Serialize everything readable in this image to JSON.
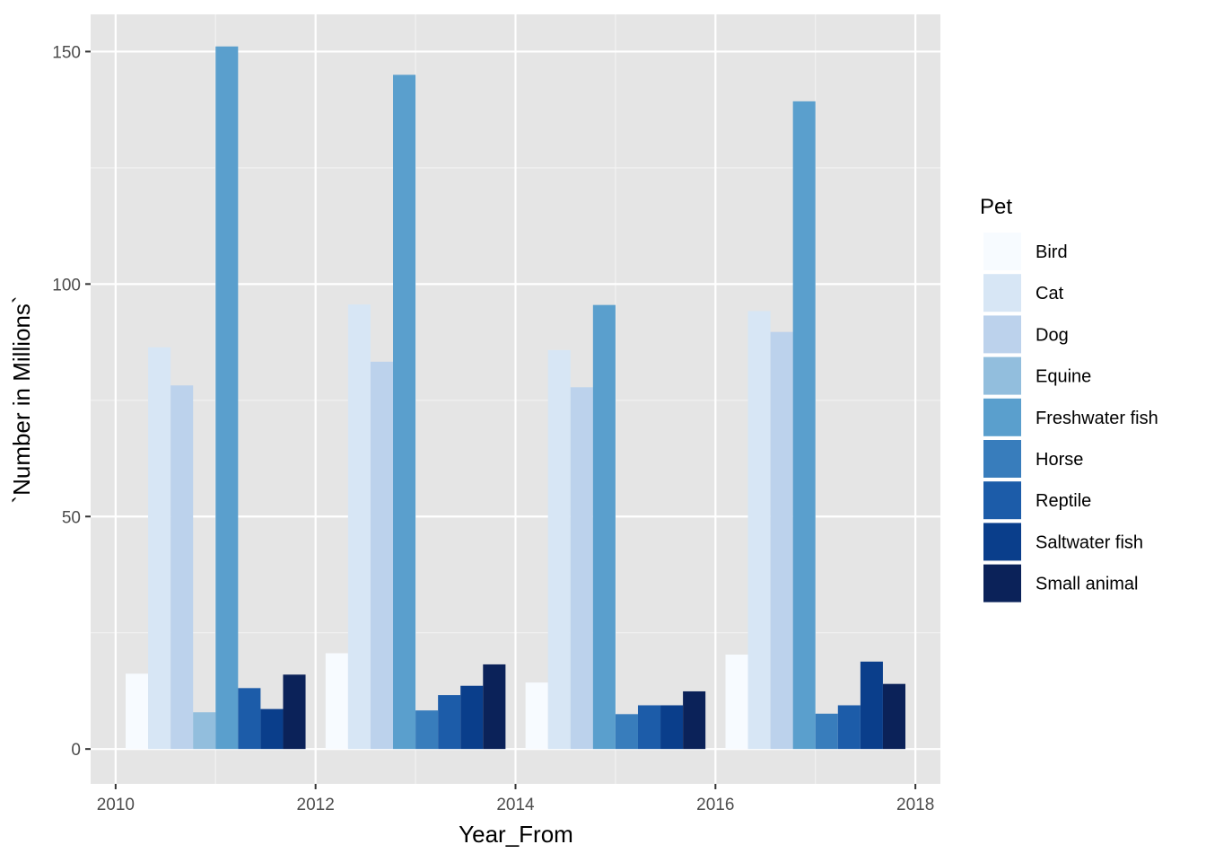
{
  "chart_data": {
    "type": "bar",
    "xlabel": "Year_From",
    "ylabel": "`Number in Millions`",
    "xlim": [
      2009.75,
      2018.25
    ],
    "ylim": [
      -7.5,
      158
    ],
    "x_ticks": [
      2010,
      2012,
      2014,
      2016,
      2018
    ],
    "y_ticks": [
      0,
      50,
      100,
      150
    ],
    "grid": true,
    "legend_title": "Pet",
    "legend_position": "right",
    "bar_group_width": 1.8,
    "x": [
      2011,
      2013,
      2015,
      2017
    ],
    "series": [
      {
        "name": "Bird",
        "color": "#f7fbff",
        "values": [
          16.2,
          20.6,
          14.3,
          20.3
        ]
      },
      {
        "name": "Cat",
        "color": "#d7e6f5",
        "values": [
          86.4,
          95.6,
          85.8,
          94.2
        ]
      },
      {
        "name": "Dog",
        "color": "#bcd2ec",
        "values": [
          78.2,
          83.3,
          77.8,
          89.7
        ]
      },
      {
        "name": "Equine",
        "color": "#92bedd",
        "values": [
          7.9,
          null,
          null,
          null
        ]
      },
      {
        "name": "Freshwater fish",
        "color": "#5a9fcd",
        "values": [
          151.1,
          145.0,
          95.5,
          139.3
        ]
      },
      {
        "name": "Horse",
        "color": "#387dbc",
        "values": [
          null,
          8.3,
          7.5,
          7.6
        ]
      },
      {
        "name": "Reptile",
        "color": "#1c5ca9",
        "values": [
          13.1,
          11.6,
          9.4,
          9.4
        ]
      },
      {
        "name": "Saltwater fish",
        "color": "#0a3e8b",
        "values": [
          8.6,
          13.6,
          9.4,
          18.8
        ]
      },
      {
        "name": "Small animal",
        "color": "#0b2259",
        "values": [
          16.0,
          18.2,
          12.4,
          14.0
        ]
      }
    ]
  }
}
